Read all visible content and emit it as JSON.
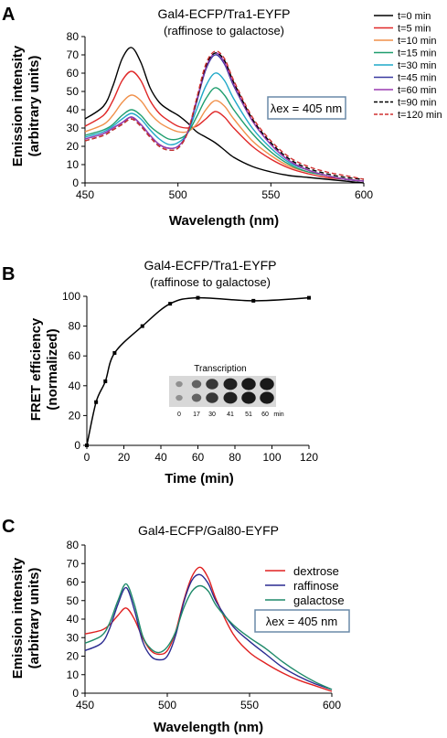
{
  "panels": {
    "A": {
      "letter": "A",
      "title": "Gal4-ECFP/Tra1-EYFP",
      "subtitle": "(raffinose to galactose)",
      "ylabel_line1": "Emission intensity",
      "ylabel_line2": "(arbitrary units)",
      "xlabel": "Wavelength (nm)",
      "annotation": "λex = 405 nm"
    },
    "B": {
      "letter": "B",
      "title": "Gal4-ECFP/Tra1-EYFP",
      "subtitle": "(raffinose to galactose)",
      "ylabel_line1": "FRET efficiency",
      "ylabel_line2": "(normalized)",
      "xlabel": "Time (min)",
      "inset_title": "Transcription",
      "inset_ticks": [
        "0",
        "17",
        "30",
        "41",
        "51",
        "60",
        "min"
      ]
    },
    "C": {
      "letter": "C",
      "title": "Gal4-ECFP/Gal80-EYFP",
      "ylabel_line1": "Emission intensity",
      "ylabel_line2": "(arbitrary units)",
      "xlabel": "Wavelength (nm)",
      "annotation": "λex = 405 nm"
    }
  },
  "chart_data": [
    {
      "id": "A",
      "type": "line",
      "title": "Gal4-ECFP/Tra1-EYFP",
      "xlabel": "Wavelength (nm)",
      "ylabel": "Emission intensity (arbitrary units)",
      "xlim": [
        450,
        600
      ],
      "ylim": [
        0,
        80
      ],
      "xticks": [
        450,
        500,
        550,
        600
      ],
      "yticks": [
        0,
        10,
        20,
        30,
        40,
        50,
        60,
        70,
        80
      ],
      "legend_position": "top-right",
      "x": [
        450,
        460,
        465,
        470,
        475,
        480,
        485,
        490,
        495,
        500,
        505,
        510,
        515,
        520,
        525,
        530,
        540,
        550,
        560,
        570,
        580,
        590,
        600
      ],
      "series": [
        {
          "name": "t=0 min",
          "color": "#000000",
          "dash": "",
          "values": [
            35,
            42,
            53,
            68,
            74,
            66,
            52,
            44,
            40,
            37,
            33,
            28,
            25,
            22,
            18,
            14,
            9,
            6,
            4,
            3,
            2,
            1,
            0
          ]
        },
        {
          "name": "t=5 min",
          "color": "#e02828",
          "dash": "",
          "values": [
            31,
            37,
            45,
            56,
            61,
            56,
            45,
            38,
            34,
            31,
            30,
            31,
            35,
            39,
            36,
            30,
            20,
            13,
            8,
            5,
            3,
            2,
            1
          ]
        },
        {
          "name": "t=10 min",
          "color": "#f0904a",
          "dash": "",
          "values": [
            28,
            32,
            37,
            44,
            48,
            45,
            38,
            33,
            30,
            28,
            28,
            32,
            40,
            45,
            42,
            35,
            23,
            15,
            9,
            6,
            4,
            2,
            1
          ]
        },
        {
          "name": "t=15 min",
          "color": "#1f9e6e",
          "dash": "",
          "values": [
            26,
            29,
            32,
            37,
            40,
            37,
            31,
            27,
            24,
            24,
            27,
            36,
            46,
            52,
            48,
            40,
            27,
            17,
            10,
            6,
            4,
            2,
            1
          ]
        },
        {
          "name": "t=30 min",
          "color": "#1fa8c8",
          "dash": "",
          "values": [
            25,
            28,
            31,
            35,
            38,
            35,
            29,
            24,
            21,
            22,
            27,
            40,
            53,
            60,
            56,
            46,
            30,
            19,
            11,
            7,
            4,
            2,
            1
          ]
        },
        {
          "name": "t=45 min",
          "color": "#3a3aa0",
          "dash": "",
          "values": [
            24,
            27,
            30,
            33,
            36,
            32,
            26,
            21,
            19,
            20,
            27,
            44,
            62,
            70,
            65,
            53,
            34,
            21,
            12,
            7,
            4,
            2,
            1
          ]
        },
        {
          "name": "t=60 min",
          "color": "#9a3ab0",
          "dash": "",
          "values": [
            24,
            27,
            30,
            33,
            36,
            32,
            26,
            21,
            19,
            20,
            27,
            45,
            63,
            71,
            66,
            54,
            34,
            21,
            12,
            7,
            4,
            2,
            1
          ]
        },
        {
          "name": "t=90 min",
          "color": "#000000",
          "dash": "5,3",
          "values": [
            23,
            26,
            29,
            32,
            35,
            31,
            25,
            20,
            18,
            19,
            27,
            45,
            64,
            71,
            67,
            55,
            35,
            22,
            13,
            8,
            5,
            3,
            2
          ]
        },
        {
          "name": "t=120 min",
          "color": "#d03030",
          "dash": "5,3",
          "values": [
            23,
            26,
            29,
            32,
            35,
            31,
            25,
            20,
            18,
            19,
            27,
            46,
            65,
            72,
            68,
            56,
            36,
            23,
            14,
            9,
            6,
            4,
            2
          ]
        }
      ]
    },
    {
      "id": "B",
      "type": "line",
      "title": "Gal4-ECFP/Tra1-EYFP",
      "xlabel": "Time (min)",
      "ylabel": "FRET efficiency (normalized)",
      "xlim": [
        0,
        120
      ],
      "ylim": [
        0,
        100
      ],
      "xticks": [
        0,
        20,
        40,
        60,
        80,
        100,
        120
      ],
      "yticks": [
        0,
        20,
        40,
        60,
        80,
        100
      ],
      "series": [
        {
          "name": "",
          "color": "#000000",
          "x": [
            0,
            5,
            10,
            15,
            30,
            45,
            60,
            90,
            120
          ],
          "values": [
            0,
            29,
            43,
            62,
            80,
            95,
            99,
            97,
            99
          ]
        }
      ]
    },
    {
      "id": "C",
      "type": "line",
      "title": "Gal4-ECFP/Gal80-EYFP",
      "xlabel": "Wavelength (nm)",
      "ylabel": "Emission intensity (arbitrary units)",
      "xlim": [
        450,
        600
      ],
      "ylim": [
        0,
        80
      ],
      "xticks": [
        450,
        500,
        550,
        600
      ],
      "yticks": [
        0,
        10,
        20,
        30,
        40,
        50,
        60,
        70,
        80
      ],
      "legend_position": "top-right",
      "x": [
        450,
        460,
        465,
        470,
        475,
        480,
        485,
        490,
        495,
        500,
        505,
        510,
        515,
        520,
        525,
        530,
        540,
        550,
        560,
        570,
        580,
        590,
        600
      ],
      "series": [
        {
          "name": "dextrose",
          "color": "#e02020",
          "dash": "",
          "values": [
            32,
            34,
            37,
            42,
            46,
            40,
            30,
            23,
            21,
            23,
            33,
            50,
            63,
            68,
            62,
            50,
            32,
            22,
            16,
            11,
            7,
            4,
            1
          ]
        },
        {
          "name": "raffinose",
          "color": "#2a2a90",
          "dash": "",
          "values": [
            23,
            27,
            35,
            48,
            57,
            45,
            28,
            20,
            18,
            20,
            31,
            49,
            61,
            64,
            59,
            49,
            36,
            28,
            21,
            14,
            9,
            5,
            2
          ]
        },
        {
          "name": "galactose",
          "color": "#1f8a6a",
          "dash": "",
          "values": [
            27,
            31,
            38,
            50,
            59,
            48,
            31,
            24,
            22,
            25,
            33,
            46,
            55,
            58,
            55,
            47,
            37,
            30,
            24,
            17,
            11,
            6,
            2
          ]
        }
      ]
    }
  ]
}
